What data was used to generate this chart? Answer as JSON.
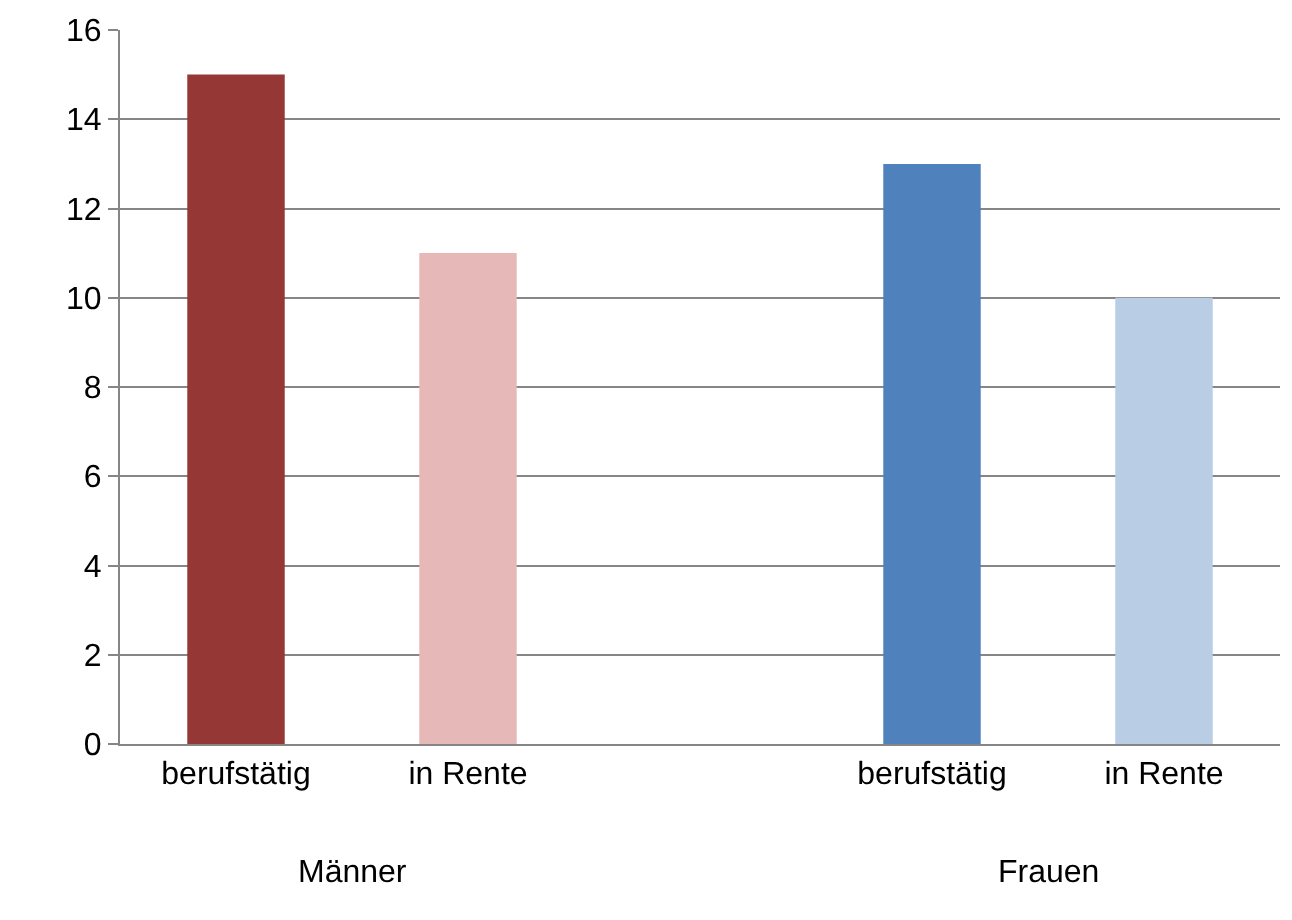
{
  "chart_data": {
    "type": "bar",
    "categories": [
      "berufstätig",
      "in Rente",
      null,
      "berufstätig",
      "in Rente"
    ],
    "values": [
      15,
      11,
      null,
      13,
      10
    ],
    "colors": [
      "#953735",
      "#e6b9b8",
      "#ffffff",
      "#4f81bd",
      "#b9cde5"
    ],
    "ylim": [
      0,
      16
    ],
    "yticks": [
      0,
      2,
      4,
      6,
      8,
      10,
      12,
      14,
      16
    ],
    "grid": "y",
    "annotations": [
      "Männer",
      "Frauen"
    ]
  }
}
